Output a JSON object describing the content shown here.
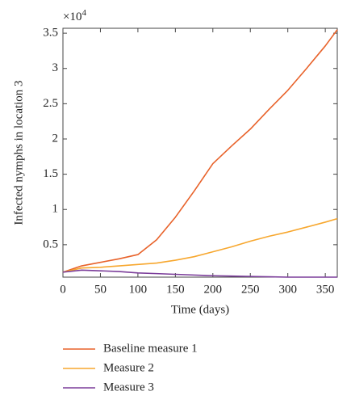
{
  "chart_data": {
    "type": "line",
    "x_label": "Time (days)",
    "y_label": "Infected nymphs in location 3",
    "y_scale_label": "×10",
    "y_scale_exponent": "4",
    "x": [
      0,
      25,
      50,
      75,
      100,
      125,
      150,
      175,
      200,
      225,
      250,
      275,
      300,
      325,
      350,
      366
    ],
    "series": [
      {
        "name": "Baseline measure 1",
        "color": "#e8622a",
        "values": [
          0.11,
          0.2,
          0.25,
          0.3,
          0.36,
          0.57,
          0.89,
          1.26,
          1.65,
          1.9,
          2.14,
          2.42,
          2.69,
          3.0,
          3.32,
          3.55
        ]
      },
      {
        "name": "Measure 2",
        "color": "#f7a72e",
        "values": [
          0.11,
          0.17,
          0.18,
          0.2,
          0.22,
          0.24,
          0.28,
          0.33,
          0.4,
          0.47,
          0.55,
          0.62,
          0.68,
          0.75,
          0.82,
          0.87
        ]
      },
      {
        "name": "Measure 3",
        "color": "#7b3d9a",
        "values": [
          0.11,
          0.14,
          0.13,
          0.12,
          0.1,
          0.09,
          0.08,
          0.07,
          0.06,
          0.055,
          0.05,
          0.045,
          0.04,
          0.04,
          0.04,
          0.04
        ]
      }
    ],
    "xlim": [
      0,
      366
    ],
    "xticks": [
      0,
      50,
      100,
      150,
      200,
      250,
      300,
      350
    ],
    "ylim": [
      0.04,
      3.57
    ],
    "yticks": [
      0.5,
      1,
      1.5,
      2,
      2.5,
      3,
      3.5
    ],
    "grid": false,
    "legend": "bottom"
  }
}
